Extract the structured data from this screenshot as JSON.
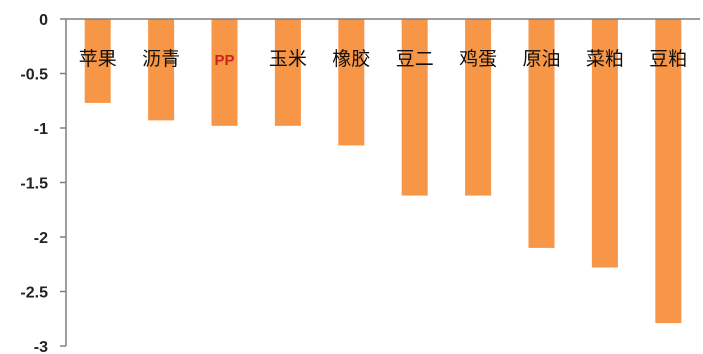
{
  "chart_data": {
    "type": "bar",
    "categories": [
      "苹果",
      "沥青",
      "PP",
      "玉米",
      "橡胶",
      "豆二",
      "鸡蛋",
      "原油",
      "菜粕",
      "豆粕"
    ],
    "values": [
      -0.77,
      -0.93,
      -0.98,
      -0.98,
      -1.16,
      -1.62,
      -1.62,
      -2.1,
      -2.28,
      -2.79
    ],
    "yticks": [
      "0",
      "-0.5",
      "-1",
      "-1.5",
      "-2",
      "-2.5",
      "-3"
    ],
    "ylim": [
      -3,
      0
    ],
    "bar_color": "#F79646",
    "axis_color": "#7f7f7f",
    "grid": false,
    "legend": false,
    "title": "",
    "xlabel": "",
    "ylabel": ""
  }
}
